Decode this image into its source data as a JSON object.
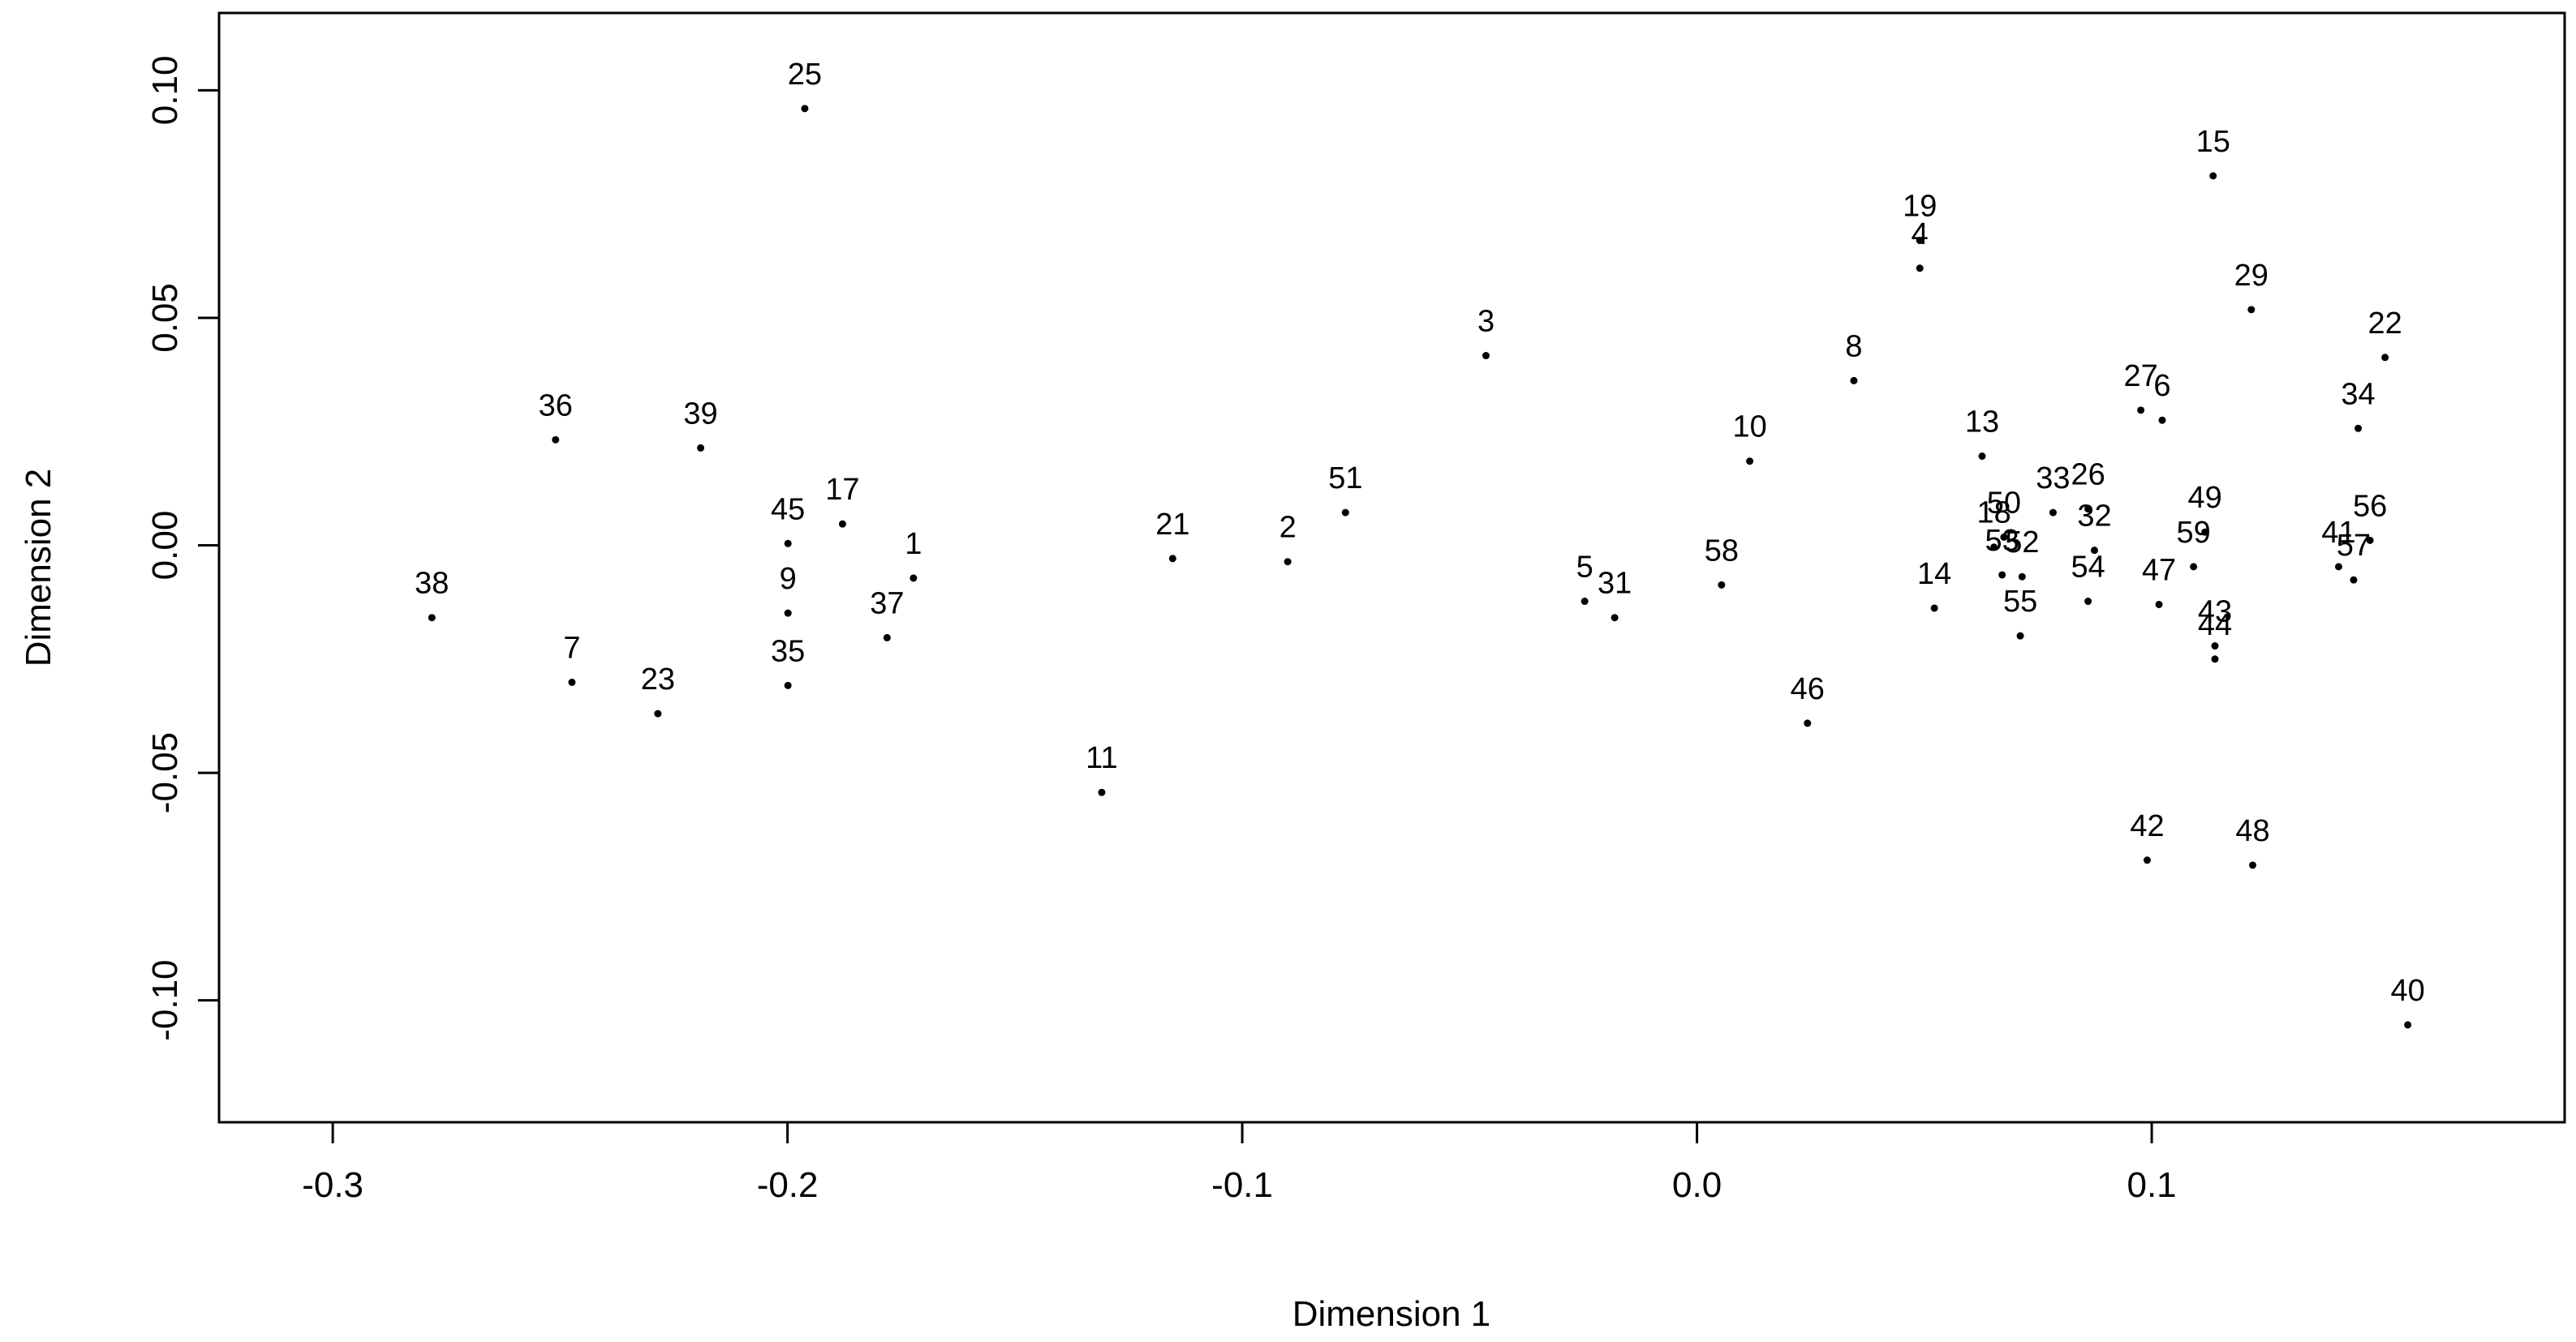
{
  "chart_data": {
    "type": "scatter",
    "xlabel": "Dimension 1",
    "ylabel": "Dimension 2",
    "xlim": [
      -0.325,
      0.1908
    ],
    "ylim": [
      -0.1268,
      0.117
    ],
    "xticks": [
      -0.3,
      -0.2,
      -0.1,
      {
        "value": 0,
        "label": "0.0"
      },
      0.1
    ],
    "yticks": [
      {
        "value": -0.1,
        "label": "-0.10"
      },
      -0.05,
      {
        "value": 0,
        "label": "0.00"
      },
      0.05,
      {
        "value": 0.1,
        "label": "0.10"
      }
    ],
    "color": "#000000",
    "labels": [
      "25",
      "38",
      "36",
      "7",
      "23",
      "39",
      "45",
      "9",
      "35",
      "17",
      "1",
      "37",
      "11",
      "21",
      "2",
      "51",
      "3",
      "5",
      "31",
      "58",
      "10",
      "46",
      "8",
      "19",
      "4",
      "13",
      "14",
      "18",
      "50",
      "53",
      "52",
      "55",
      "33",
      "26",
      "32",
      "54",
      "27",
      "6",
      "47",
      "42",
      "15",
      "29",
      "49",
      "59",
      "43",
      "44",
      "48",
      "22",
      "34",
      "56",
      "41",
      "57",
      "40"
    ],
    "x": [
      -0.1962,
      -0.2782,
      -0.251,
      -0.2474,
      -0.2285,
      -0.2191,
      -0.1999,
      -0.1999,
      -0.1999,
      -0.1879,
      -0.1723,
      -0.1781,
      -0.1309,
      -0.1153,
      -0.09,
      -0.0773,
      -0.0464,
      -0.0247,
      -0.0181,
      0.0054,
      0.0116,
      0.0243,
      0.0345,
      0.049,
      0.049,
      0.0627,
      0.0522,
      0.0653,
      0.0675,
      0.0671,
      0.0715,
      0.0711,
      0.0783,
      0.086,
      0.0874,
      0.086,
      0.0976,
      0.1023,
      0.1016,
      0.099,
      0.1135,
      0.1219,
      0.1117,
      0.1092,
      0.1139,
      0.1139,
      0.1222,
      0.1513,
      0.1454,
      0.148,
      0.1411,
      0.1444,
      0.1563
    ],
    "values": [
      0.096,
      -0.0159,
      0.0232,
      -0.0301,
      -0.037,
      0.0214,
      0.0004,
      -0.0149,
      -0.0308,
      0.0047,
      -0.0072,
      -0.0203,
      -0.0543,
      -0.0029,
      -0.0036,
      0.0072,
      0.0417,
      -0.0123,
      -0.0159,
      -0.0087,
      0.0185,
      -0.0391,
      0.0362,
      0.067,
      0.0609,
      0.0196,
      -0.0138,
      -0.0004,
      0.0018,
      -0.0065,
      -0.0069,
      -0.0199,
      0.0072,
      0.008,
      -0.0011,
      -0.0123,
      0.0297,
      0.0275,
      -0.013,
      -0.0692,
      0.0812,
      0.0518,
      0.0029,
      -0.0047,
      -0.0221,
      -0.025,
      -0.0703,
      0.0413,
      0.0257,
      0.0011,
      -0.0047,
      -0.0076,
      -0.1054
    ]
  }
}
